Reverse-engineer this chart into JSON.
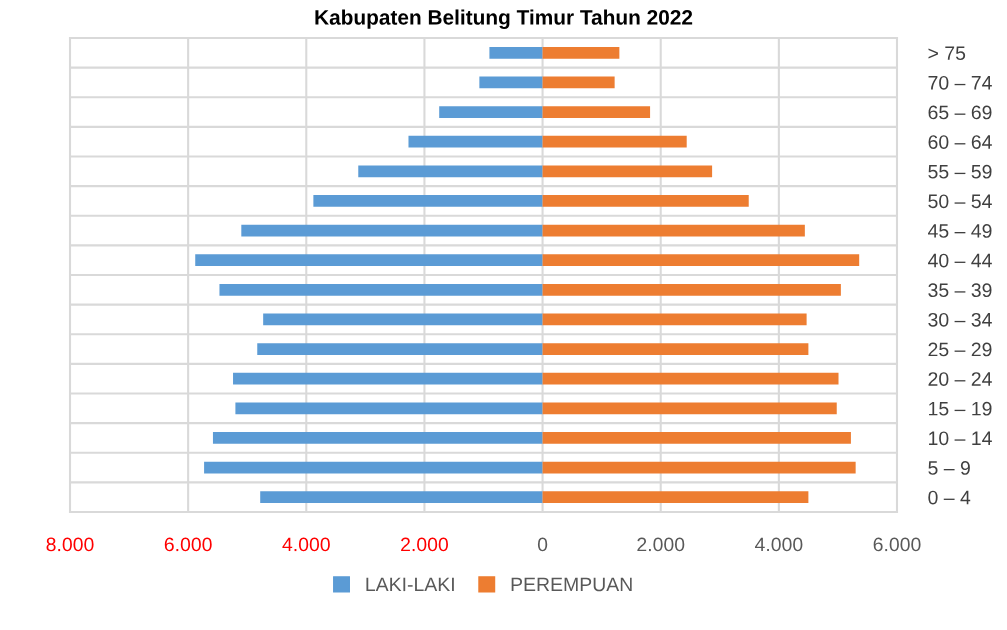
{
  "chart_data": {
    "type": "bar",
    "orientation": "horizontal",
    "title": "Kabupaten Belitung Timur Tahun 2022",
    "categories": [
      "> 75",
      "70 – 74",
      "65 – 69",
      "60 – 64",
      "55 – 59",
      "50 – 54",
      "45 – 49",
      "40 – 44",
      "35 – 39",
      "30 – 34",
      "25 – 29",
      "20 – 24",
      "15 – 19",
      "10 – 14",
      "5 – 9",
      "0 – 4"
    ],
    "series": [
      {
        "name": "LAKI-LAKI",
        "color": "#5b9bd5",
        "values": [
          -900,
          -1070,
          -1750,
          -2270,
          -3120,
          -3880,
          -5100,
          -5880,
          -5470,
          -4730,
          -4830,
          -5240,
          -5200,
          -5580,
          -5730,
          -4780
        ]
      },
      {
        "name": "PEREMPUAN",
        "color": "#ed7d31",
        "values": [
          1300,
          1220,
          1820,
          2440,
          2870,
          3490,
          4440,
          5360,
          5050,
          4470,
          4500,
          5010,
          4980,
          5220,
          5300,
          4500
        ]
      }
    ],
    "xlim": [
      -8000,
      6000
    ],
    "xticks": [
      {
        "value": -8000,
        "label": "8.000"
      },
      {
        "value": -6000,
        "label": "6.000"
      },
      {
        "value": -4000,
        "label": "4.000"
      },
      {
        "value": -2000,
        "label": "2.000"
      },
      0,
      {
        "value": 2000,
        "label": "2.000"
      },
      {
        "value": 4000,
        "label": "4.000"
      },
      {
        "value": 6000,
        "label": "6.000"
      }
    ],
    "stacked": true,
    "grid": true,
    "legend": "bottom"
  }
}
